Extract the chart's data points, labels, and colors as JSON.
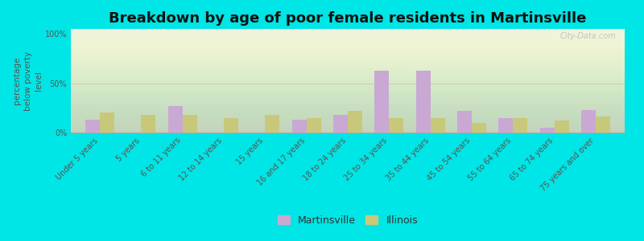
{
  "title": "Breakdown by age of poor female residents in Martinsville",
  "ylabel": "percentage\nbelow poverty\nlevel",
  "categories": [
    "Under 5 years",
    "5 years",
    "6 to 11 years",
    "12 to 14 years",
    "15 years",
    "16 and 17 years",
    "18 to 24 years",
    "25 to 34 years",
    "35 to 44 years",
    "45 to 54 years",
    "55 to 64 years",
    "65 to 74 years",
    "75 years and over"
  ],
  "martinsville": [
    13,
    0,
    27,
    0,
    0,
    13,
    18,
    63,
    63,
    22,
    15,
    5,
    23
  ],
  "illinois": [
    20,
    18,
    18,
    15,
    18,
    15,
    22,
    15,
    15,
    10,
    15,
    12,
    16
  ],
  "martinsville_color": "#c9a8d4",
  "illinois_color": "#c8c87a",
  "ylim": [
    0,
    105
  ],
  "yticks": [
    0,
    50,
    100
  ],
  "ytick_labels": [
    "0%",
    "50%",
    "100%"
  ],
  "bg_color": "#00e5e5",
  "plot_bg_color": "#eef3dc",
  "bar_width": 0.35,
  "title_fontsize": 13,
  "tick_fontsize": 7,
  "ylabel_fontsize": 7.5,
  "legend_fontsize": 9,
  "watermark": "City-Data.com"
}
